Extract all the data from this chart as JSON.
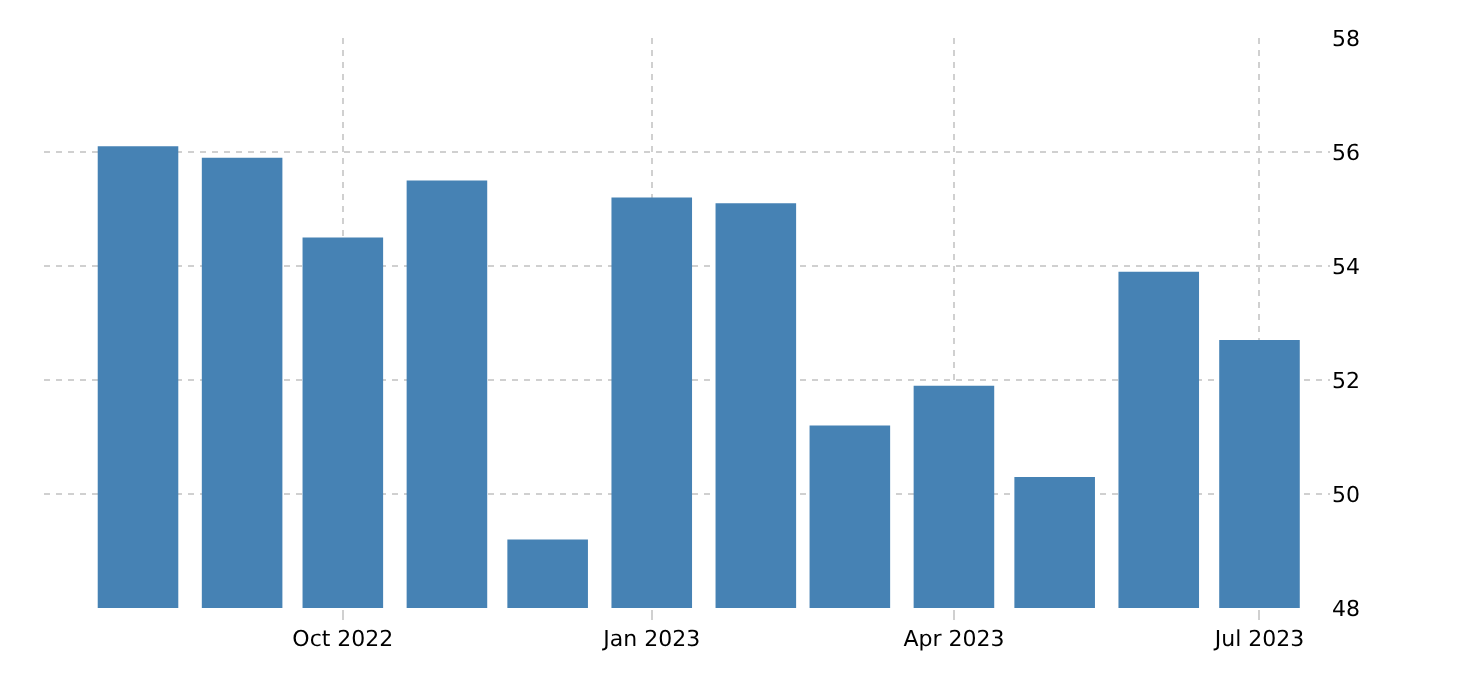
{
  "chart_data": {
    "type": "bar",
    "x": [
      "2022-08",
      "2022-09",
      "2022-10",
      "2022-11",
      "2022-12",
      "2023-01",
      "2023-02",
      "2023-03",
      "2023-04",
      "2023-05",
      "2023-06",
      "2023-07"
    ],
    "values": [
      56.1,
      55.9,
      54.5,
      55.5,
      49.2,
      55.2,
      55.1,
      51.2,
      51.9,
      50.3,
      53.9,
      52.7
    ],
    "color": "#4682b4",
    "xlim": [
      "2022-07-04",
      "2023-07-22"
    ],
    "xticks": [
      {
        "value": "2022-10",
        "label": "Oct 2022"
      },
      {
        "value": "2023-01",
        "label": "Jan 2023"
      },
      {
        "value": "2023-04",
        "label": "Apr 2023"
      },
      {
        "value": "2023-07",
        "label": "Jul 2023"
      }
    ],
    "ylim": [
      48,
      58
    ],
    "yticks": [
      48,
      50,
      52,
      54,
      56,
      58
    ],
    "grid": true
  }
}
